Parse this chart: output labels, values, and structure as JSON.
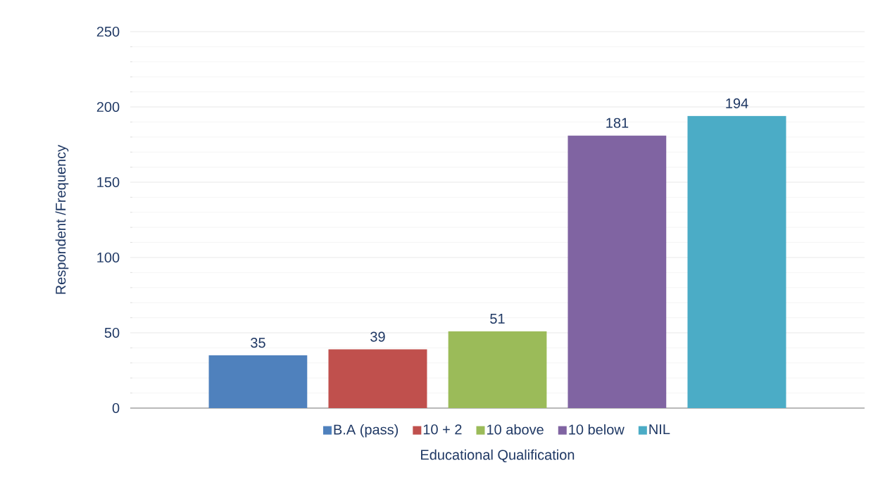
{
  "chart_data": {
    "type": "bar",
    "xlabel": "Educational Qualification",
    "ylabel": "Respondent /Frequency",
    "categories": [
      null
    ],
    "series": [
      {
        "name": "B.A (pass)",
        "color": "#4f81bd",
        "values": [
          35
        ]
      },
      {
        "name": "10 + 2",
        "color": "#c0504d",
        "values": [
          39
        ]
      },
      {
        "name": "10 above",
        "color": "#9bbb59",
        "values": [
          51
        ]
      },
      {
        "name": "10 below",
        "color": "#8064a2",
        "values": [
          181
        ]
      },
      {
        "name": "NIL",
        "color": "#4bacc6",
        "values": [
          194
        ]
      }
    ],
    "ylim": [
      0,
      250
    ],
    "yticks": [
      0,
      50,
      100,
      150,
      200,
      250
    ],
    "grid": true,
    "legend": "bottom",
    "data_labels": true
  }
}
